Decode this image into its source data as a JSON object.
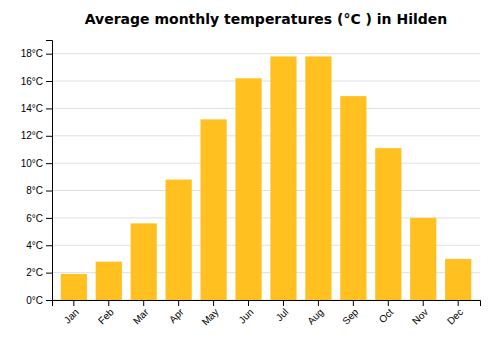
{
  "chart_data": {
    "type": "bar",
    "title": "Average monthly temperatures (°C ) in Hilden",
    "categories": [
      "Jan",
      "Feb",
      "Mar",
      "Apr",
      "May",
      "Jun",
      "Jul",
      "Aug",
      "Sep",
      "Oct",
      "Nov",
      "Dec"
    ],
    "values": [
      1.9,
      2.8,
      5.6,
      8.8,
      13.2,
      16.2,
      17.8,
      17.8,
      14.9,
      11.1,
      6.0,
      3.0
    ],
    "color": "#FFC020",
    "ylim": [
      0,
      19
    ],
    "yticks": [
      {
        "value": 0,
        "label": "0°C"
      },
      {
        "value": 2,
        "label": "2°C"
      },
      {
        "value": 4,
        "label": "4°C"
      },
      {
        "value": 6,
        "label": "6°C"
      },
      {
        "value": 8,
        "label": "8°C"
      },
      {
        "value": 10,
        "label": "10°C"
      },
      {
        "value": 12,
        "label": "12°C"
      },
      {
        "value": 14,
        "label": "14°C"
      },
      {
        "value": 16,
        "label": "16°C"
      },
      {
        "value": 18,
        "label": "18°C"
      }
    ],
    "grid": true
  }
}
